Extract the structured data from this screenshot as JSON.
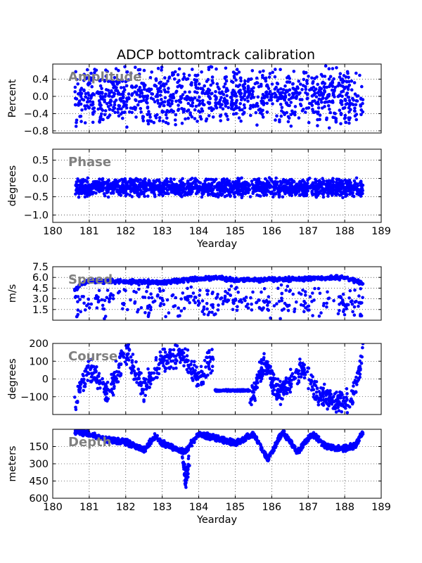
{
  "chart_data": {
    "title": "ADCP bottomtrack calibration",
    "marker_color": "#0000ff",
    "annotation_color": "#808080",
    "grid": true,
    "panels": [
      {
        "id": "amplitude",
        "type": "scatter",
        "annotation": "Amplitude",
        "ylabel": "Percent",
        "xlabel": "",
        "xlim": [
          180,
          189
        ],
        "ylim": [
          -0.85,
          0.75
        ],
        "xticks": [
          180,
          181,
          182,
          183,
          184,
          185,
          186,
          187,
          188,
          189
        ],
        "xtick_labels": [],
        "yticks": [
          -0.8,
          -0.4,
          0.0,
          0.4
        ],
        "ytick_labels": [
          "−0.8",
          "−0.4",
          "0.0",
          "0.4"
        ],
        "series": [
          {
            "x_range": [
              180.6,
              188.5
            ],
            "trend": [
              [
                180.6,
                0.0
              ],
              [
                188.5,
                0.0
              ]
            ],
            "spread": 0.75,
            "count": 1100,
            "seed": 11
          }
        ]
      },
      {
        "id": "phase",
        "type": "scatter",
        "annotation": "Phase",
        "ylabel": "degrees",
        "xlabel": "Yearday",
        "xlim": [
          180,
          189
        ],
        "ylim": [
          -1.2,
          0.8
        ],
        "xticks": [
          180,
          181,
          182,
          183,
          184,
          185,
          186,
          187,
          188,
          189
        ],
        "xtick_labels": [
          "180",
          "181",
          "182",
          "183",
          "184",
          "185",
          "186",
          "187",
          "188",
          "189"
        ],
        "yticks": [
          -1.0,
          -0.5,
          0.0,
          0.5
        ],
        "ytick_labels": [
          "−1.0",
          "−0.5",
          "0.0",
          "0.5"
        ],
        "series": [
          {
            "x_range": [
              180.6,
              188.5
            ],
            "trend": [
              [
                180.6,
                -0.25
              ],
              [
                188.5,
                -0.25
              ]
            ],
            "spread": 0.28,
            "count": 1500,
            "seed": 23
          }
        ]
      },
      {
        "id": "speed",
        "type": "scatter",
        "annotation": "Speed",
        "ylabel": "m/s",
        "xlabel": "",
        "xlim": [
          180,
          189
        ],
        "ylim": [
          0,
          7.5
        ],
        "xticks": [
          180,
          181,
          182,
          183,
          184,
          185,
          186,
          187,
          188,
          189
        ],
        "xtick_labels": [],
        "yticks": [
          1.5,
          3.0,
          4.5,
          6.0,
          7.5
        ],
        "ytick_labels": [
          "1.5",
          "3.0",
          "4.5",
          "6.0",
          "7.5"
        ],
        "series": [
          {
            "x_range": [
              180.6,
              188.5
            ],
            "trend": [
              [
                180.6,
                4.2
              ],
              [
                180.75,
                5.0
              ],
              [
                181,
                5.5
              ],
              [
                182,
                5.4
              ],
              [
                183,
                5.3
              ],
              [
                184,
                5.8
              ],
              [
                184.5,
                6.0
              ],
              [
                185,
                5.6
              ],
              [
                186,
                5.7
              ],
              [
                187,
                5.8
              ],
              [
                188,
                6.0
              ],
              [
                188.5,
                5.1
              ]
            ],
            "spread": 0.35,
            "count": 900,
            "seed": 31
          },
          {
            "x_range": [
              180.6,
              188.5
            ],
            "trend": [
              [
                180.6,
                2.6
              ],
              [
                188.5,
                2.6
              ]
            ],
            "spread": 2.6,
            "count": 320,
            "seed": 37
          }
        ]
      },
      {
        "id": "course",
        "type": "scatter",
        "annotation": "Course",
        "ylabel": "degrees",
        "xlabel": "",
        "xlim": [
          180,
          189
        ],
        "ylim": [
          -200,
          200
        ],
        "xticks": [
          180,
          181,
          182,
          183,
          184,
          185,
          186,
          187,
          188,
          189
        ],
        "xtick_labels": [],
        "yticks": [
          -100,
          0,
          100,
          200
        ],
        "ytick_labels": [
          "−100",
          "0",
          "100",
          "200"
        ],
        "series": [
          {
            "x_range": [
              180.6,
              184.4
            ],
            "trend": [
              [
                180.6,
                -130
              ],
              [
                181,
                60
              ],
              [
                181.5,
                -80
              ],
              [
                182,
                150
              ],
              [
                182.5,
                -60
              ],
              [
                183,
                100
              ],
              [
                183.5,
                140
              ],
              [
                184,
                0
              ],
              [
                184.4,
                120
              ]
            ],
            "spread": 90,
            "count": 420,
            "seed": 41
          },
          {
            "x_range": [
              184.45,
              185.4
            ],
            "trend": [
              [
                184.45,
                -65
              ],
              [
                185.4,
                -65
              ]
            ],
            "spread": 6,
            "count": 150,
            "seed": 43
          },
          {
            "x_range": [
              185.4,
              188.5
            ],
            "trend": [
              [
                185.4,
                -140
              ],
              [
                185.8,
                100
              ],
              [
                186.2,
                -90
              ],
              [
                186.8,
                60
              ],
              [
                187.3,
                -80
              ],
              [
                187.8,
                -130
              ],
              [
                188.2,
                -120
              ],
              [
                188.5,
                150
              ]
            ],
            "spread": 80,
            "count": 420,
            "seed": 47
          }
        ]
      },
      {
        "id": "depth",
        "type": "scatter",
        "annotation": "Depth",
        "ylabel": "meters",
        "xlabel": "Yearday",
        "xlim": [
          180,
          189
        ],
        "ylim": [
          600,
          0
        ],
        "xticks": [
          180,
          181,
          182,
          183,
          184,
          185,
          186,
          187,
          188,
          189
        ],
        "xtick_labels": [
          "180",
          "181",
          "182",
          "183",
          "184",
          "185",
          "186",
          "187",
          "188",
          "189"
        ],
        "yticks": [
          150,
          300,
          450,
          600
        ],
        "ytick_labels": [
          "150",
          "300",
          "450",
          "600"
        ],
        "series": [
          {
            "x_range": [
              180.6,
              188.5
            ],
            "trend": [
              [
                180.6,
                20
              ],
              [
                181,
                40
              ],
              [
                181.5,
                90
              ],
              [
                182,
                110
              ],
              [
                182.5,
                180
              ],
              [
                182.8,
                60
              ],
              [
                183,
                120
              ],
              [
                183.3,
                160
              ],
              [
                183.6,
                200
              ],
              [
                184,
                40
              ],
              [
                184.5,
                80
              ],
              [
                185,
                120
              ],
              [
                185.5,
                40
              ],
              [
                185.9,
                260
              ],
              [
                186.3,
                20
              ],
              [
                186.7,
                200
              ],
              [
                187.1,
                40
              ],
              [
                187.5,
                150
              ],
              [
                188,
                170
              ],
              [
                188.3,
                140
              ],
              [
                188.5,
                20
              ]
            ],
            "spread": 30,
            "count": 1400,
            "seed": 53
          },
          {
            "x_range": [
              183.55,
              183.75
            ],
            "trend": [
              [
                183.55,
                250
              ],
              [
                183.65,
                450
              ],
              [
                183.75,
                300
              ]
            ],
            "spread": 120,
            "count": 50,
            "seed": 59
          }
        ]
      }
    ]
  }
}
